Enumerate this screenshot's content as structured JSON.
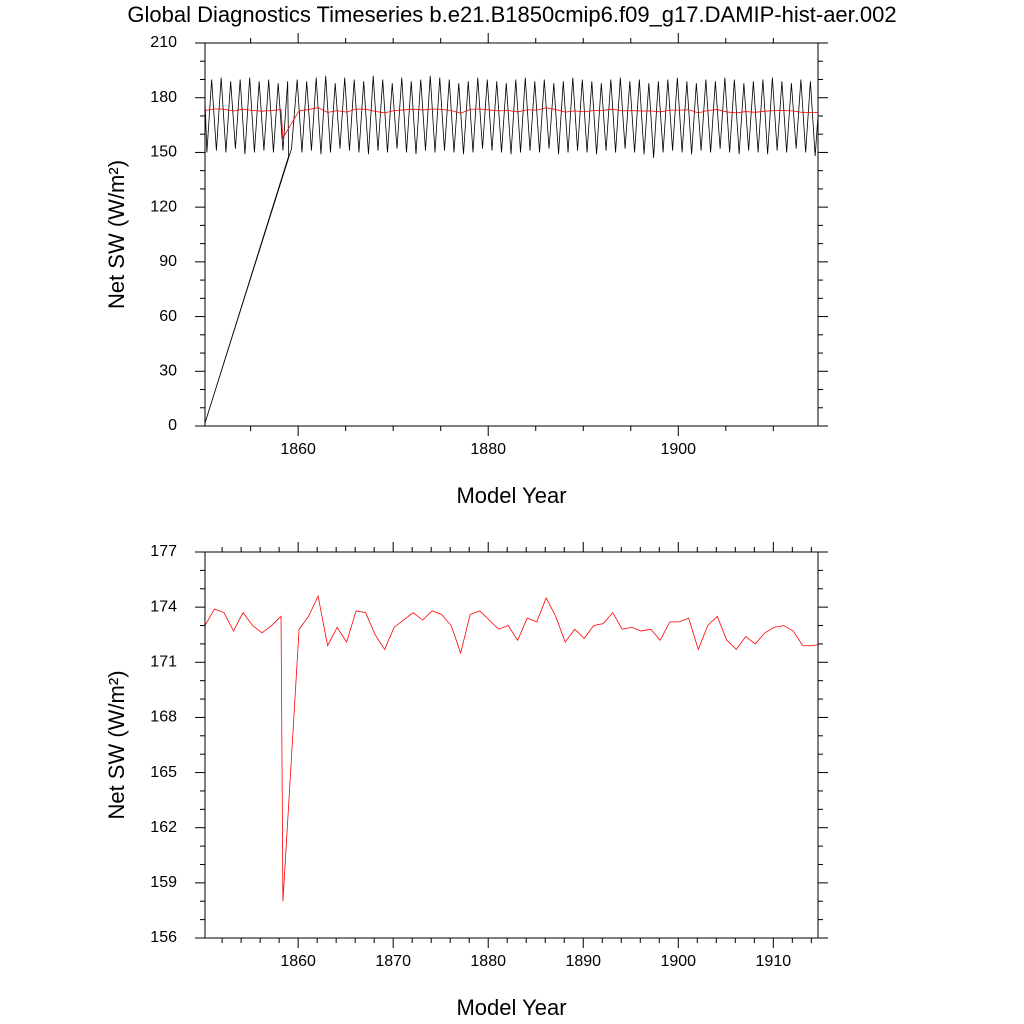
{
  "chart_data": [
    {
      "type": "line",
      "title": "Global Diagnostics Timeseries b.e21.B1850cmip6.f09_g17.DAMIP-hist-aer.002",
      "xlabel": "Model Year",
      "ylabel": "Net SW (W/m²)",
      "xlim": [
        1850.2,
        1914.7
      ],
      "xticks": [
        1860,
        1880,
        1900
      ],
      "xminorticks": [
        1855,
        1865,
        1870,
        1875,
        1885,
        1890,
        1895,
        1905,
        1910
      ],
      "ylim": [
        0,
        210
      ],
      "yticks": [
        0,
        30,
        60,
        90,
        120,
        150,
        180,
        210
      ],
      "yminorticks": [
        10,
        20,
        40,
        50,
        70,
        80,
        100,
        110,
        130,
        140,
        160,
        170,
        190,
        200
      ],
      "series": [
        {
          "color": "#000000",
          "x": [
            1850.2,
            1850.4,
            1850.9,
            1851.4,
            1851.9,
            1852.4,
            1852.9,
            1853.4,
            1853.9,
            1854.4,
            1854.9,
            1855.4,
            1855.9,
            1856.4,
            1856.9,
            1857.4,
            1857.9,
            1858.4,
            1858.9,
            1859.0,
            1850.1,
            1859.3,
            1859.9,
            1860.4,
            1860.9,
            1861.4,
            1861.9,
            1862.4,
            1862.9,
            1863.4,
            1863.9,
            1864.4,
            1864.9,
            1865.4,
            1865.9,
            1866.4,
            1866.9,
            1867.4,
            1867.9,
            1868.4,
            1868.9,
            1869.4,
            1869.9,
            1870.4,
            1870.9,
            1871.4,
            1871.9,
            1872.4,
            1872.9,
            1873.4,
            1873.9,
            1874.4,
            1874.9,
            1875.4,
            1875.9,
            1876.4,
            1876.9,
            1877.4,
            1877.9,
            1878.4,
            1878.9,
            1879.4,
            1879.9,
            1880.4,
            1880.9,
            1881.4,
            1881.9,
            1882.4,
            1882.9,
            1883.4,
            1883.9,
            1884.4,
            1884.9,
            1885.4,
            1885.9,
            1886.4,
            1886.9,
            1887.4,
            1887.9,
            1888.4,
            1888.9,
            1889.4,
            1889.9,
            1890.4,
            1890.9,
            1891.4,
            1891.9,
            1892.4,
            1892.9,
            1893.4,
            1893.9,
            1894.4,
            1894.9,
            1895.4,
            1895.9,
            1896.4,
            1896.9,
            1897.4,
            1897.9,
            1898.4,
            1898.9,
            1899.4,
            1899.9,
            1900.4,
            1900.9,
            1901.4,
            1901.9,
            1902.4,
            1902.9,
            1903.4,
            1903.9,
            1904.4,
            1904.9,
            1905.4,
            1905.9,
            1906.4,
            1906.9,
            1907.4,
            1907.9,
            1908.4,
            1908.9,
            1909.4,
            1909.9,
            1910.4,
            1910.9,
            1911.4,
            1911.9,
            1912.4,
            1912.9,
            1913.4,
            1913.9,
            1914.4,
            1914.7
          ],
          "values": [
            178,
            150,
            190,
            151,
            191,
            150,
            189,
            152,
            190,
            149,
            191,
            150,
            189,
            151,
            190,
            150,
            188,
            151,
            189,
            148,
            0,
            152,
            190,
            150,
            189,
            151,
            191,
            149,
            192,
            150,
            188,
            152,
            191,
            151,
            190,
            150,
            189,
            149,
            192,
            151,
            190,
            150,
            188,
            152,
            191,
            150,
            189,
            149,
            190,
            151,
            192,
            150,
            191,
            151,
            190,
            150,
            188,
            149,
            189,
            150,
            191,
            152,
            190,
            151,
            189,
            150,
            188,
            149,
            190,
            150,
            191,
            151,
            189,
            150,
            190,
            152,
            188,
            149,
            189,
            150,
            191,
            151,
            190,
            150,
            189,
            149,
            188,
            151,
            190,
            150,
            191,
            152,
            189,
            150,
            190,
            149,
            188,
            147,
            189,
            150,
            190,
            151,
            191,
            150,
            189,
            149,
            188,
            151,
            190,
            150,
            189,
            152,
            191,
            150,
            190,
            149,
            188,
            151,
            189,
            150,
            190,
            149,
            191,
            151,
            189,
            150,
            188,
            152,
            190,
            150,
            189,
            148,
            170
          ]
        },
        {
          "color": "#ff0000",
          "x": [
            1850.2,
            1851.2,
            1852.2,
            1853.2,
            1854.2,
            1855.2,
            1856.2,
            1857.2,
            1858.2,
            1858.4,
            1860.1,
            1861.1,
            1862.1,
            1863.1,
            1864.1,
            1865.1,
            1866.1,
            1867.1,
            1868.1,
            1869.1,
            1870.1,
            1871.1,
            1872.1,
            1873.1,
            1874.1,
            1875.1,
            1876.1,
            1877.1,
            1878.1,
            1879.1,
            1880.1,
            1881.1,
            1882.1,
            1883.1,
            1884.1,
            1885.1,
            1886.1,
            1887.1,
            1888.1,
            1889.1,
            1890.1,
            1891.1,
            1892.1,
            1893.1,
            1894.1,
            1895.1,
            1896.1,
            1897.1,
            1898.1,
            1899.1,
            1900.1,
            1901.1,
            1902.1,
            1903.1,
            1904.1,
            1905.1,
            1906.1,
            1907.1,
            1908.1,
            1909.1,
            1910.1,
            1911.1,
            1912.1,
            1913.1,
            1914.1,
            1915.1
          ],
          "values": [
            173.0,
            173.9,
            173.7,
            172.7,
            173.7,
            173.0,
            172.6,
            173.0,
            173.5,
            158.0,
            172.8,
            173.5,
            174.6,
            171.9,
            172.9,
            172.1,
            173.8,
            173.7,
            172.5,
            171.7,
            172.9,
            173.3,
            173.7,
            173.3,
            173.8,
            173.6,
            173.0,
            171.5,
            173.6,
            173.8,
            173.3,
            172.8,
            173.0,
            172.2,
            173.4,
            173.2,
            174.5,
            173.5,
            172.1,
            172.8,
            172.3,
            173.0,
            173.1,
            173.7,
            172.8,
            172.9,
            172.7,
            172.8,
            172.2,
            173.2,
            173.2,
            173.4,
            171.7,
            173.0,
            173.5,
            172.2,
            171.7,
            172.4,
            172.0,
            172.6,
            172.9,
            173.0,
            172.7,
            171.9,
            171.9,
            172.0
          ]
        }
      ]
    },
    {
      "type": "line",
      "xlabel": "Model Year",
      "ylabel": "Net SW (W/m²)",
      "xlim": [
        1850.2,
        1914.7
      ],
      "xticks": [
        1860,
        1870,
        1880,
        1890,
        1900,
        1910
      ],
      "xminorticks": [
        1852,
        1854,
        1856,
        1858,
        1862,
        1864,
        1866,
        1868,
        1872,
        1874,
        1876,
        1878,
        1882,
        1884,
        1886,
        1888,
        1892,
        1894,
        1896,
        1898,
        1902,
        1904,
        1906,
        1908,
        1912,
        1914
      ],
      "ylim": [
        156,
        177
      ],
      "yticks": [
        156,
        159,
        162,
        165,
        168,
        171,
        174,
        177
      ],
      "yminorticks": [
        157,
        158,
        160,
        161,
        163,
        164,
        166,
        167,
        169,
        170,
        172,
        173,
        175,
        176
      ],
      "series": [
        {
          "color": "#ff0000",
          "x": [
            1850.2,
            1851.2,
            1852.2,
            1853.2,
            1854.2,
            1855.2,
            1856.2,
            1857.2,
            1858.2,
            1858.4,
            1860.1,
            1861.1,
            1862.1,
            1863.1,
            1864.1,
            1865.1,
            1866.1,
            1867.1,
            1868.1,
            1869.1,
            1870.1,
            1871.1,
            1872.1,
            1873.1,
            1874.1,
            1875.1,
            1876.1,
            1877.1,
            1878.1,
            1879.1,
            1880.1,
            1881.1,
            1882.1,
            1883.1,
            1884.1,
            1885.1,
            1886.1,
            1887.1,
            1888.1,
            1889.1,
            1890.1,
            1891.1,
            1892.1,
            1893.1,
            1894.1,
            1895.1,
            1896.1,
            1897.1,
            1898.1,
            1899.1,
            1900.1,
            1901.1,
            1902.1,
            1903.1,
            1904.1,
            1905.1,
            1906.1,
            1907.1,
            1908.1,
            1909.1,
            1910.1,
            1911.1,
            1912.1,
            1913.1,
            1914.1,
            1915.1
          ],
          "values": [
            173.0,
            173.9,
            173.7,
            172.7,
            173.7,
            173.0,
            172.6,
            173.0,
            173.5,
            158.0,
            172.8,
            173.5,
            174.6,
            171.9,
            172.9,
            172.1,
            173.8,
            173.7,
            172.5,
            171.7,
            172.9,
            173.3,
            173.7,
            173.3,
            173.8,
            173.6,
            173.0,
            171.5,
            173.6,
            173.8,
            173.3,
            172.8,
            173.0,
            172.2,
            173.4,
            173.2,
            174.5,
            173.5,
            172.1,
            172.8,
            172.3,
            173.0,
            173.1,
            173.7,
            172.8,
            172.9,
            172.7,
            172.8,
            172.2,
            173.2,
            173.2,
            173.4,
            171.7,
            173.0,
            173.5,
            172.2,
            171.7,
            172.4,
            172.0,
            172.6,
            172.9,
            173.0,
            172.7,
            171.9,
            171.9,
            172.0
          ]
        }
      ]
    }
  ]
}
